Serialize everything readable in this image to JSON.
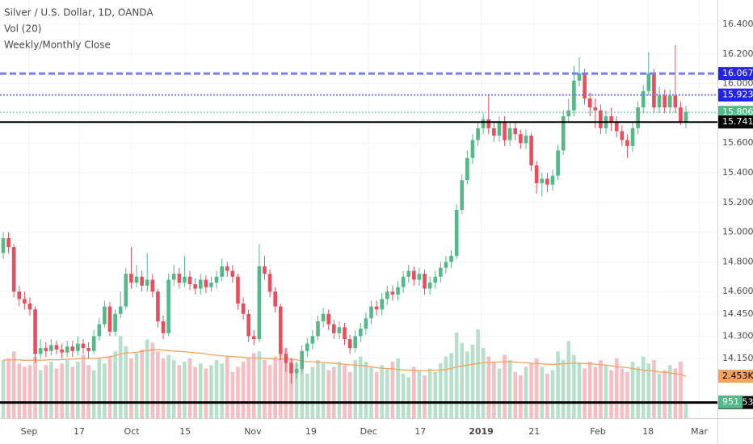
{
  "chart_data": {
    "type": "candlestick",
    "title": "Silver / U.S. Dollar, 1D, OANDA",
    "indicators": [
      "Vol (20)",
      "Weekly/Monthly Close"
    ],
    "up_color": "#53b987",
    "down_color": "#eb4d5c",
    "volume_up_color": "#b7e0cb",
    "volume_down_color": "#f8bcc3",
    "xlim": [
      -0.6,
      133.9
    ],
    "xticks": [
      {
        "value": 4.85,
        "label": "Sep"
      },
      {
        "value": 14.25,
        "label": "17"
      },
      {
        "value": 24.1,
        "label": "Oct"
      },
      {
        "value": 34.1,
        "label": "15"
      },
      {
        "value": 46.8,
        "label": "Nov"
      },
      {
        "value": 57.7,
        "label": "19"
      },
      {
        "value": 68.5,
        "label": "Dec"
      },
      {
        "value": 78.2,
        "label": "17"
      },
      {
        "value": 89.6,
        "label": "2019",
        "bold": true
      },
      {
        "value": 99.55,
        "label": "21"
      },
      {
        "value": 111.5,
        "label": "Feb"
      },
      {
        "value": 120.9,
        "label": "18"
      },
      {
        "value": 130.5,
        "label": "Mar"
      }
    ],
    "ylim": [
      13.748,
      16.563
    ],
    "yticks": [
      {
        "value": 16.4,
        "label": "16.40000"
      },
      {
        "value": 16.2,
        "label": "16.20000"
      },
      {
        "value": 16.0,
        "label": "16.00000"
      },
      {
        "value": 15.6,
        "label": "15.60000"
      },
      {
        "value": 15.4,
        "label": "15.40000"
      },
      {
        "value": 15.2,
        "label": "15.20000"
      },
      {
        "value": 15.0,
        "label": "15.00000"
      },
      {
        "value": 14.8,
        "label": "14.80000"
      },
      {
        "value": 14.6,
        "label": "14.60000"
      },
      {
        "value": 14.45,
        "label": "14.45000"
      },
      {
        "value": 14.3,
        "label": "14.30000"
      },
      {
        "value": 14.15,
        "label": "14.15000"
      }
    ],
    "grid": true,
    "open": [
      14.86,
      14.96,
      14.9,
      14.6,
      14.55,
      14.52,
      14.48,
      14.18,
      14.22,
      14.2,
      14.24,
      14.21,
      14.19,
      14.23,
      14.2,
      14.25,
      14.22,
      14.2,
      14.3,
      14.38,
      14.5,
      14.33,
      14.45,
      14.5,
      14.72,
      14.66,
      14.7,
      14.64,
      14.68,
      14.6,
      14.4,
      14.32,
      14.68,
      14.72,
      14.66,
      14.7,
      14.65,
      14.62,
      14.68,
      14.63,
      14.66,
      14.7,
      14.77,
      14.74,
      14.7,
      14.52,
      14.45,
      14.3,
      14.28,
      14.77,
      14.72,
      14.6,
      14.5,
      14.18,
      14.12,
      14.05,
      14.08,
      14.2,
      14.25,
      14.3,
      14.4,
      14.45,
      14.38,
      14.32,
      14.36,
      14.28,
      14.22,
      14.3,
      14.35,
      14.42,
      14.5,
      14.48,
      14.55,
      14.6,
      14.58,
      14.63,
      14.7,
      14.74,
      14.68,
      14.72,
      14.62,
      14.66,
      14.7,
      14.76,
      14.8,
      14.84,
      15.15,
      15.35,
      15.5,
      15.62,
      15.7,
      15.76,
      15.7,
      15.65,
      15.74,
      15.62,
      15.7,
      15.66,
      15.6,
      15.65,
      15.45,
      15.33,
      15.36,
      15.32,
      15.38,
      15.55,
      15.78,
      15.82,
      16.02,
      16.07,
      15.9,
      15.84,
      15.82,
      15.7,
      15.78,
      15.74,
      15.68,
      15.62,
      15.58,
      15.7,
      15.84,
      15.95,
      16.07,
      15.84,
      15.92,
      15.84,
      15.92,
      15.84,
      15.74
    ],
    "high": [
      15.0,
      15.0,
      14.92,
      14.64,
      14.6,
      14.56,
      14.5,
      14.28,
      14.26,
      14.28,
      14.27,
      14.25,
      14.27,
      14.27,
      14.3,
      14.28,
      14.26,
      14.34,
      14.42,
      14.54,
      14.53,
      14.48,
      14.6,
      14.76,
      14.9,
      14.78,
      14.74,
      14.86,
      14.72,
      14.62,
      14.44,
      14.72,
      14.78,
      14.76,
      14.84,
      14.74,
      14.69,
      14.72,
      14.71,
      14.7,
      14.74,
      14.82,
      14.8,
      14.78,
      14.72,
      14.56,
      14.48,
      14.34,
      14.92,
      14.84,
      14.75,
      14.63,
      14.52,
      14.22,
      14.15,
      14.13,
      14.24,
      14.29,
      14.34,
      14.44,
      14.49,
      14.48,
      14.41,
      14.4,
      14.39,
      14.31,
      14.34,
      14.39,
      14.46,
      14.54,
      14.54,
      14.59,
      14.64,
      14.64,
      14.67,
      14.74,
      14.78,
      14.77,
      14.76,
      14.75,
      14.7,
      14.74,
      14.8,
      14.84,
      14.88,
      15.19,
      15.39,
      15.55,
      15.66,
      15.74,
      15.8,
      15.92,
      15.74,
      15.78,
      15.78,
      15.74,
      15.74,
      15.69,
      15.69,
      15.67,
      15.48,
      15.4,
      15.4,
      15.42,
      15.59,
      15.82,
      15.9,
      16.12,
      16.18,
      16.1,
      15.94,
      15.9,
      15.86,
      15.82,
      15.84,
      15.78,
      15.72,
      15.66,
      15.74,
      15.88,
      15.99,
      16.21,
      16.1,
      15.98,
      15.96,
      15.96,
      16.26,
      15.88,
      15.85
    ],
    "low": [
      14.82,
      14.86,
      14.56,
      14.5,
      14.48,
      14.44,
      14.12,
      14.15,
      14.16,
      14.17,
      14.18,
      14.15,
      14.16,
      14.16,
      14.17,
      14.18,
      14.15,
      14.18,
      14.27,
      14.36,
      14.3,
      14.3,
      14.42,
      14.48,
      14.62,
      14.63,
      14.6,
      14.6,
      14.56,
      14.36,
      14.28,
      14.3,
      14.64,
      14.62,
      14.63,
      14.61,
      14.58,
      14.58,
      14.59,
      14.6,
      14.62,
      14.67,
      14.7,
      14.66,
      14.48,
      14.41,
      14.26,
      14.24,
      14.26,
      14.68,
      14.56,
      14.46,
      14.14,
      14.06,
      13.98,
      14.01,
      14.05,
      14.16,
      14.21,
      14.27,
      14.36,
      14.34,
      14.28,
      14.28,
      14.24,
      14.18,
      14.19,
      14.26,
      14.31,
      14.38,
      14.44,
      14.44,
      14.51,
      14.54,
      14.54,
      14.59,
      14.66,
      14.64,
      14.64,
      14.58,
      14.58,
      14.62,
      14.66,
      14.72,
      14.76,
      14.82,
      15.12,
      15.32,
      15.46,
      15.58,
      15.66,
      15.66,
      15.61,
      15.61,
      15.58,
      15.58,
      15.62,
      15.56,
      15.56,
      15.41,
      15.26,
      15.24,
      15.27,
      15.28,
      15.35,
      15.52,
      15.74,
      15.78,
      15.98,
      15.86,
      15.78,
      15.7,
      15.66,
      15.66,
      15.68,
      15.64,
      15.58,
      15.5,
      15.54,
      15.66,
      15.8,
      15.92,
      15.8,
      15.8,
      15.8,
      15.8,
      15.8,
      15.72,
      15.7
    ],
    "close": [
      14.96,
      14.9,
      14.6,
      14.55,
      14.52,
      14.48,
      14.18,
      14.22,
      14.2,
      14.24,
      14.21,
      14.19,
      14.23,
      14.2,
      14.25,
      14.22,
      14.2,
      14.3,
      14.38,
      14.5,
      14.33,
      14.45,
      14.5,
      14.72,
      14.66,
      14.7,
      14.64,
      14.68,
      14.6,
      14.4,
      14.32,
      14.68,
      14.72,
      14.66,
      14.7,
      14.65,
      14.62,
      14.68,
      14.63,
      14.66,
      14.7,
      14.77,
      14.74,
      14.7,
      14.52,
      14.45,
      14.3,
      14.28,
      14.77,
      14.72,
      14.6,
      14.5,
      14.18,
      14.12,
      14.05,
      14.08,
      14.2,
      14.25,
      14.3,
      14.4,
      14.45,
      14.38,
      14.32,
      14.36,
      14.28,
      14.22,
      14.3,
      14.35,
      14.42,
      14.5,
      14.48,
      14.55,
      14.6,
      14.58,
      14.63,
      14.7,
      14.74,
      14.68,
      14.72,
      14.62,
      14.66,
      14.7,
      14.76,
      14.8,
      14.84,
      15.15,
      15.35,
      15.5,
      15.62,
      15.7,
      15.76,
      15.7,
      15.65,
      15.74,
      15.62,
      15.7,
      15.66,
      15.6,
      15.65,
      15.45,
      15.33,
      15.36,
      15.32,
      15.38,
      15.55,
      15.78,
      15.82,
      16.02,
      16.07,
      15.9,
      15.84,
      15.82,
      15.7,
      15.78,
      15.74,
      15.68,
      15.62,
      15.58,
      15.7,
      15.84,
      15.95,
      16.07,
      15.84,
      15.92,
      15.84,
      15.92,
      15.84,
      15.74,
      15.81
    ],
    "volume": {
      "ylim": [
        0,
        10000
      ],
      "values": [
        3400,
        3500,
        3900,
        3200,
        3000,
        3100,
        3600,
        2800,
        3100,
        3300,
        2900,
        3200,
        3400,
        3000,
        3300,
        3700,
        3100,
        2800,
        3500,
        3200,
        3600,
        3900,
        4800,
        4200,
        3500,
        3800,
        4000,
        4600,
        4400,
        3900,
        3500,
        3700,
        3400,
        3100,
        3300,
        3500,
        3000,
        3200,
        2900,
        3100,
        3400,
        3200,
        3600,
        2700,
        3000,
        3300,
        3500,
        3800,
        3900,
        3400,
        3100,
        3600,
        3900,
        4100,
        3500,
        3200,
        2900,
        2600,
        3000,
        3400,
        3200,
        2800,
        3000,
        3300,
        3100,
        2700,
        3400,
        3600,
        3300,
        3000,
        2700,
        3100,
        2900,
        3300,
        3500,
        2600,
        2400,
        3000,
        2800,
        2500,
        2900,
        2700,
        3200,
        3600,
        3800,
        5000,
        4400,
        3900,
        4300,
        5200,
        4100,
        3600,
        3300,
        2900,
        3700,
        3400,
        2700,
        2500,
        3000,
        3200,
        3500,
        3000,
        2600,
        2800,
        3900,
        3400,
        4500,
        3700,
        3200,
        2900,
        3300,
        3000,
        3400,
        3100,
        2800,
        3500,
        2900,
        2700,
        3300,
        3000,
        3600,
        3200,
        3400,
        2600,
        2800,
        3100,
        2900,
        3300,
        951
      ]
    },
    "volume_ma": {
      "color": "#f7a35c",
      "values": [
        3400,
        3400,
        3420,
        3400,
        3380,
        3380,
        3400,
        3380,
        3400,
        3420,
        3400,
        3420,
        3450,
        3450,
        3480,
        3500,
        3500,
        3480,
        3520,
        3550,
        3600,
        3650,
        3750,
        3800,
        3820,
        3850,
        3900,
        3950,
        4000,
        4000,
        3980,
        3950,
        3920,
        3900,
        3880,
        3850,
        3820,
        3800,
        3750,
        3700,
        3680,
        3650,
        3620,
        3600,
        3580,
        3550,
        3520,
        3500,
        3520,
        3500,
        3480,
        3450,
        3450,
        3480,
        3450,
        3400,
        3350,
        3300,
        3300,
        3280,
        3250,
        3220,
        3200,
        3180,
        3150,
        3120,
        3100,
        3080,
        3050,
        3000,
        2950,
        2920,
        2900,
        2880,
        2850,
        2820,
        2800,
        2800,
        2780,
        2780,
        2800,
        2800,
        2820,
        2850,
        2900,
        3000,
        3050,
        3100,
        3150,
        3200,
        3250,
        3250,
        3280,
        3280,
        3300,
        3300,
        3280,
        3250,
        3250,
        3200,
        3200,
        3180,
        3150,
        3150,
        3150,
        3180,
        3200,
        3220,
        3200,
        3200,
        3180,
        3150,
        3120,
        3100,
        3050,
        3000,
        2980,
        2950,
        2900,
        2850,
        2800,
        2780,
        2750,
        2700,
        2680,
        2650,
        2600,
        2550,
        2453
      ],
      "value_labels": [
        null,
        null,
        null,
        null,
        null,
        null,
        null,
        null,
        null,
        null,
        null,
        null,
        null,
        null,
        null,
        null,
        null,
        null,
        null,
        null,
        null,
        null,
        null,
        null,
        null,
        null,
        null,
        null,
        null,
        null,
        null,
        null,
        null,
        null,
        null,
        null,
        null,
        null,
        null,
        null,
        null,
        null,
        null,
        null,
        null,
        null,
        null,
        null,
        null,
        null,
        null,
        null,
        null,
        null,
        null,
        null,
        null,
        null,
        null,
        null,
        null,
        null,
        null,
        null,
        null,
        null,
        null,
        null,
        null,
        null,
        null,
        null,
        null,
        null,
        null,
        null,
        null,
        null,
        null,
        null,
        null,
        null,
        null,
        null,
        null,
        null,
        null,
        null,
        null,
        null,
        null,
        null,
        null,
        null,
        null,
        null,
        null,
        null,
        null,
        null,
        null,
        null,
        null,
        null,
        null,
        null,
        null,
        null,
        null,
        null,
        null,
        null,
        null,
        null,
        null,
        null,
        null,
        null,
        null,
        null,
        null,
        null,
        null,
        null,
        null,
        null,
        null,
        null,
        "2.453K"
      ]
    },
    "levels": [
      {
        "value": 16.06786,
        "color": "#7b7bf0",
        "box": "#2424e8",
        "style": "dashed",
        "width": 3
      },
      {
        "value": 15.92354,
        "color": "#7b7bf0",
        "box": "#2424e8",
        "style": "dotted",
        "width": 2
      },
      {
        "value": 15.80692,
        "color": "#53b987",
        "box": "#53b987",
        "style": "dotted",
        "width": 1
      },
      {
        "value": 15.74131,
        "color": "#000000",
        "box": "#000000",
        "style": "solid",
        "width": 2
      },
      {
        "value": 13.85329,
        "color": "#000000",
        "box": "#000000",
        "style": "solid",
        "width": 3
      }
    ]
  }
}
